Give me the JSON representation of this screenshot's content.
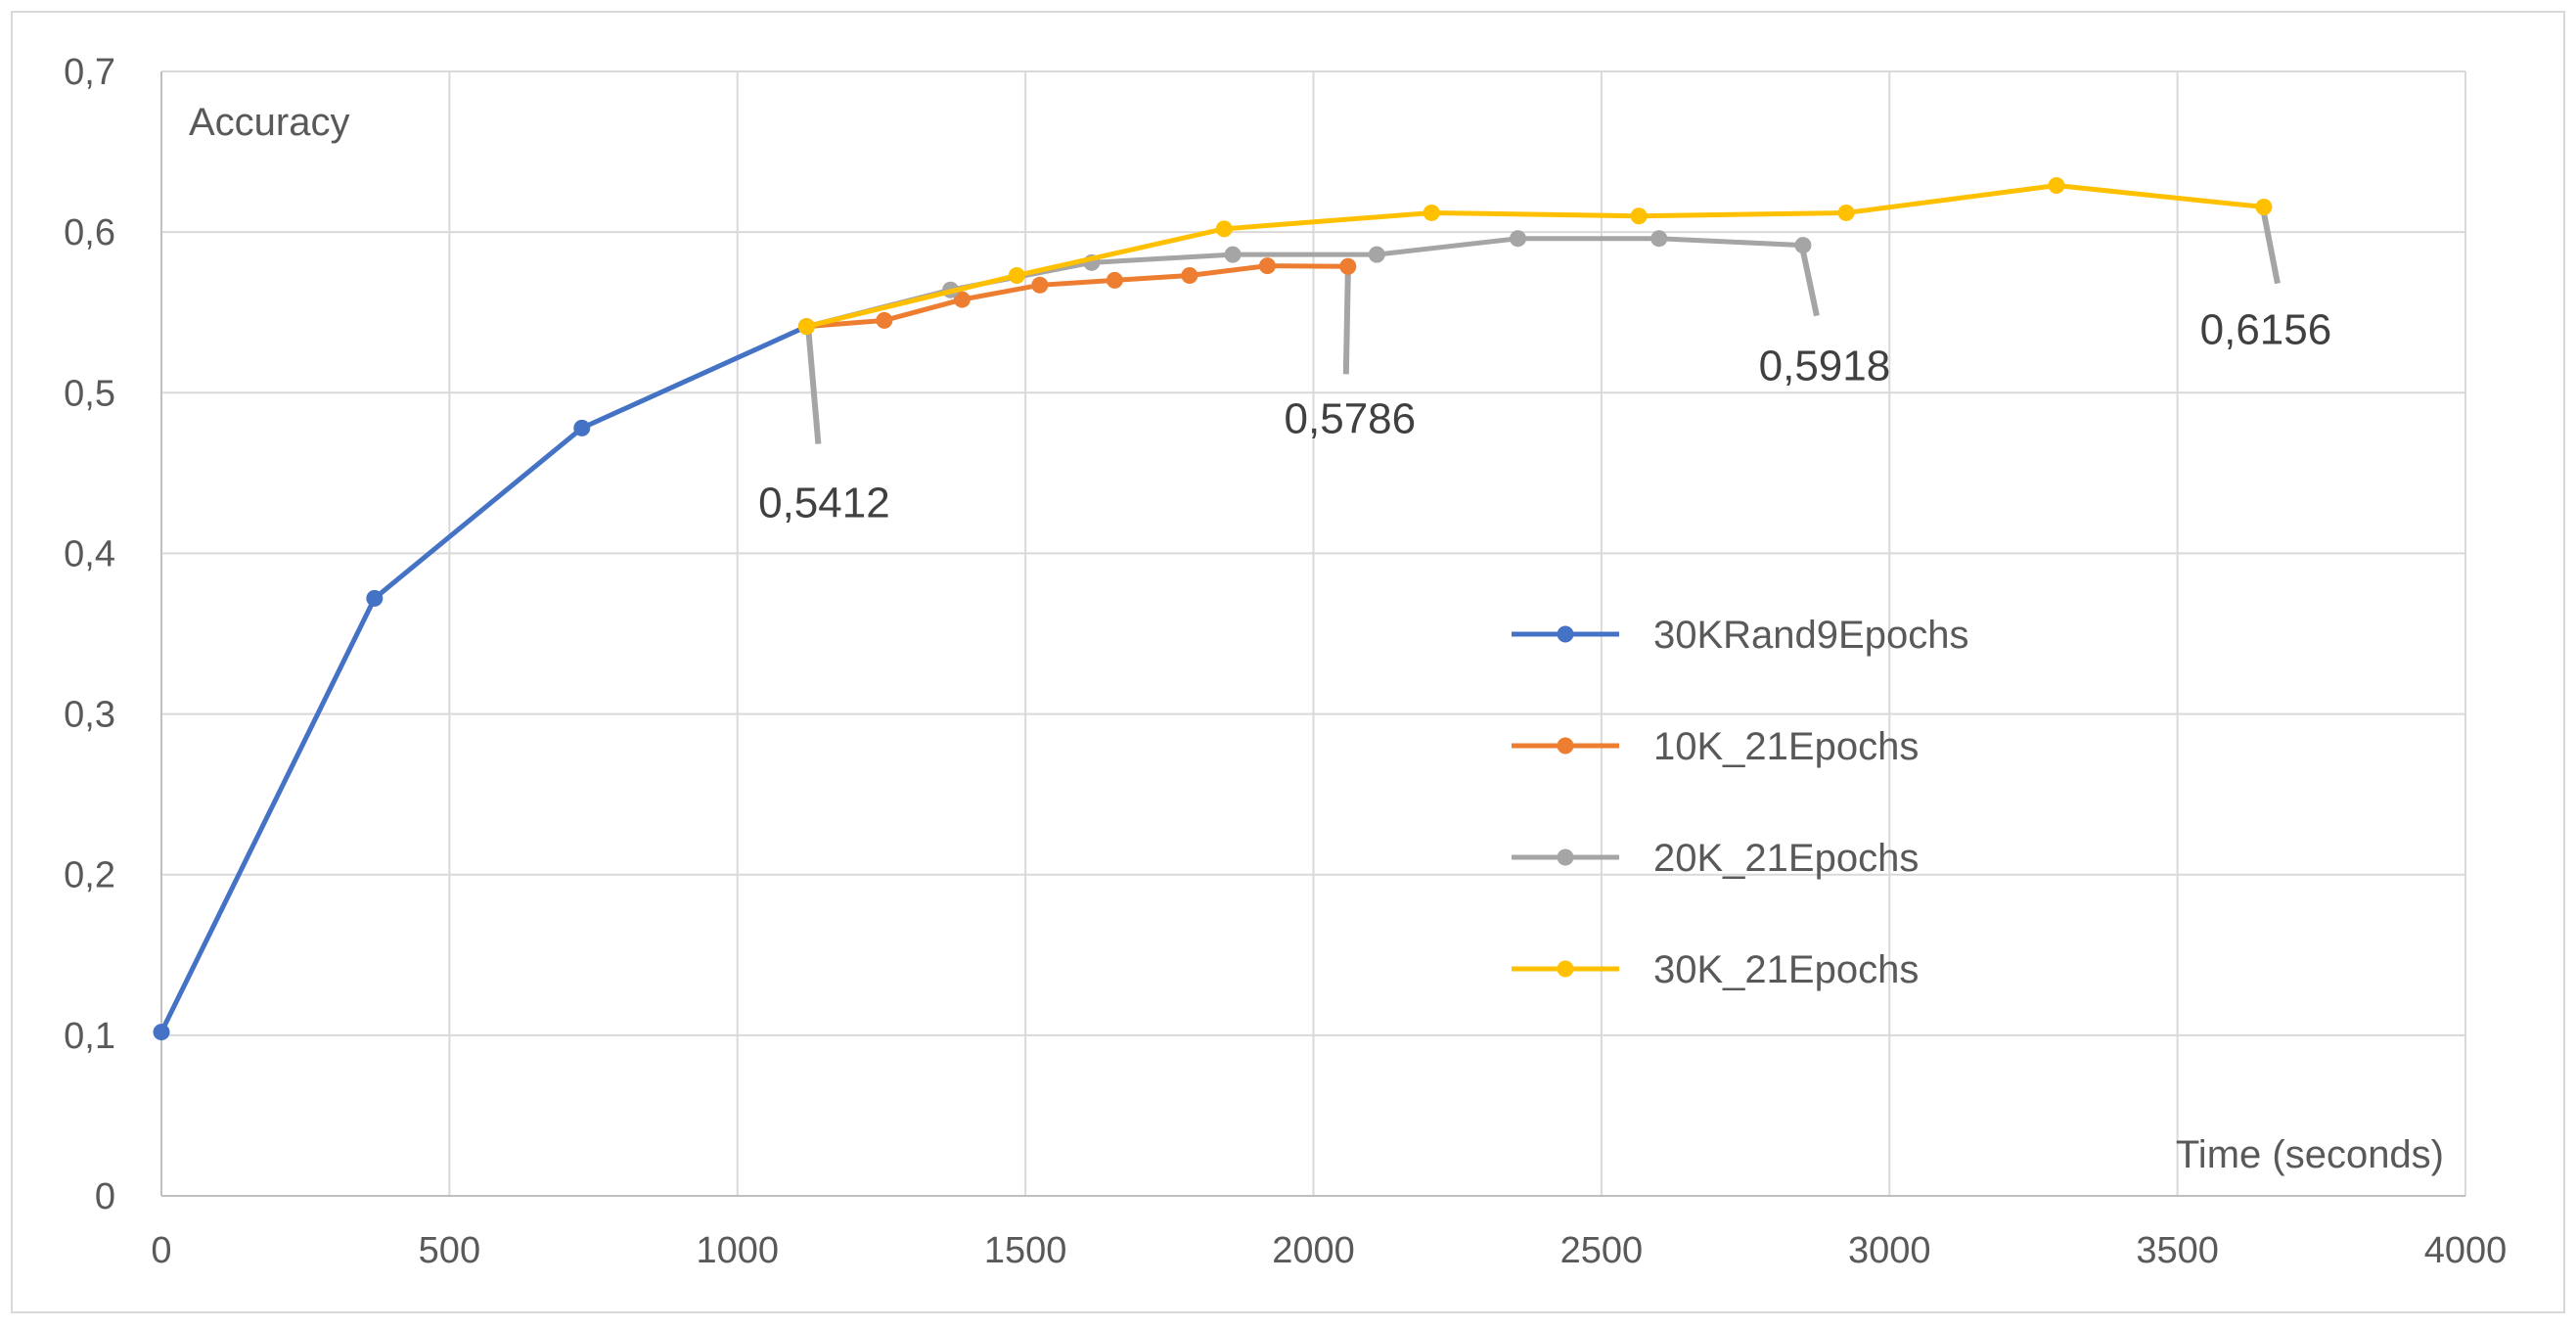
{
  "chart_data": {
    "type": "line",
    "xlabel": "Time (seconds)",
    "ylabel": "Accuracy",
    "xlim": [
      0,
      4000
    ],
    "ylim": [
      0,
      0.7
    ],
    "x_ticks": [
      0,
      500,
      1000,
      1500,
      2000,
      2500,
      3000,
      3500,
      4000
    ],
    "y_ticks": [
      0,
      0.1,
      0.2,
      0.3,
      0.4,
      0.5,
      0.6,
      0.7
    ],
    "x_tick_labels": [
      "0",
      "500",
      "1000",
      "1500",
      "2000",
      "2500",
      "3000",
      "3500",
      "4000"
    ],
    "y_tick_labels": [
      "0",
      "0,1",
      "0,2",
      "0,3",
      "0,4",
      "0,5",
      "0,6",
      "0,7"
    ],
    "grid": true,
    "legend_position": "right",
    "series": [
      {
        "name": "30KRand9Epochs",
        "color": "#4472C4",
        "points": [
          [
            0,
            0.102
          ],
          [
            370,
            0.372
          ],
          [
            730,
            0.478
          ],
          [
            1120,
            0.5412
          ]
        ]
      },
      {
        "name": "10K_21Epochs",
        "color": "#ED7D31",
        "points": [
          [
            1120,
            0.5412
          ],
          [
            1255,
            0.545
          ],
          [
            1390,
            0.558
          ],
          [
            1525,
            0.567
          ],
          [
            1655,
            0.57
          ],
          [
            1785,
            0.573
          ],
          [
            1920,
            0.579
          ],
          [
            2060,
            0.5786
          ]
        ]
      },
      {
        "name": "20K_21Epochs",
        "color": "#A5A5A5",
        "points": [
          [
            1120,
            0.5412
          ],
          [
            1370,
            0.564
          ],
          [
            1615,
            0.581
          ],
          [
            1860,
            0.586
          ],
          [
            2110,
            0.586
          ],
          [
            2355,
            0.596
          ],
          [
            2600,
            0.596
          ],
          [
            2850,
            0.5918
          ]
        ]
      },
      {
        "name": "30K_21Epochs",
        "color": "#FFC000",
        "points": [
          [
            1120,
            0.5412
          ],
          [
            1485,
            0.573
          ],
          [
            1845,
            0.602
          ],
          [
            2205,
            0.612
          ],
          [
            2565,
            0.61
          ],
          [
            2925,
            0.612
          ],
          [
            3290,
            0.629
          ],
          [
            3650,
            0.6156
          ]
        ]
      }
    ],
    "annotations": [
      {
        "text": "0,5412",
        "x": 1120,
        "y": 0.5412
      },
      {
        "text": "0,5786",
        "x": 2060,
        "y": 0.5786
      },
      {
        "text": "0,5918",
        "x": 2850,
        "y": 0.5918
      },
      {
        "text": "0,6156",
        "x": 3650,
        "y": 0.6156
      }
    ]
  }
}
